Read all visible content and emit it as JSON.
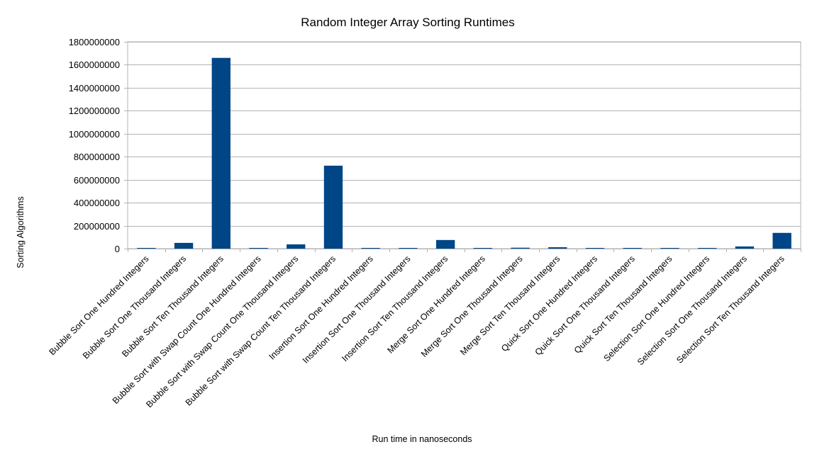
{
  "chart_data": {
    "type": "bar",
    "title": "Random Integer Array Sorting Runtimes",
    "xlabel": "Run time in nanoseconds",
    "ylabel": "Sorting Algorithms",
    "ylim": [
      0,
      1800000000
    ],
    "y_ticks": [
      0,
      200000000,
      400000000,
      600000000,
      800000000,
      1000000000,
      1200000000,
      1400000000,
      1600000000,
      1800000000
    ],
    "grid": true,
    "legend": "none",
    "bar_color": "#004586",
    "categories": [
      "Bubble Sort One Hundred Integers",
      "Bubble Sort One Thousand Integers",
      "Bubble Sort Ten Thousand Integers",
      "Bubble Sort with Swap Count One Hundred Integers",
      "Bubble Sort with Swap Count One Thousand Integers",
      "Bubble Sort with Swap Count Ten Thousand Integers",
      "Insertion Sort One Hundred Integers",
      "Insertion Sort One Thousand Integers",
      "Insertion Sort Ten Thousand Integers",
      "Merge Sort One Hundred Integers",
      "Merge Sort One Thousand Integers",
      "Merge Sort Ten Thousand Integers",
      "Quick Sort One Hundred Integers",
      "Quick Sort One Thousand Integers",
      "Quick Sort Ten Thousand Integers",
      "Selection Sort One Hundred Integers",
      "Selection Sort One Thousand Integers",
      "Selection Sort Ten Thousand Integers"
    ],
    "values": [
      1000000,
      50000000,
      1660000000,
      1000000,
      37000000,
      722000000,
      500000,
      1000000,
      75000000,
      300000,
      8000000,
      12000000,
      300000,
      3000000,
      5000000,
      300000,
      19000000,
      137000000
    ]
  }
}
